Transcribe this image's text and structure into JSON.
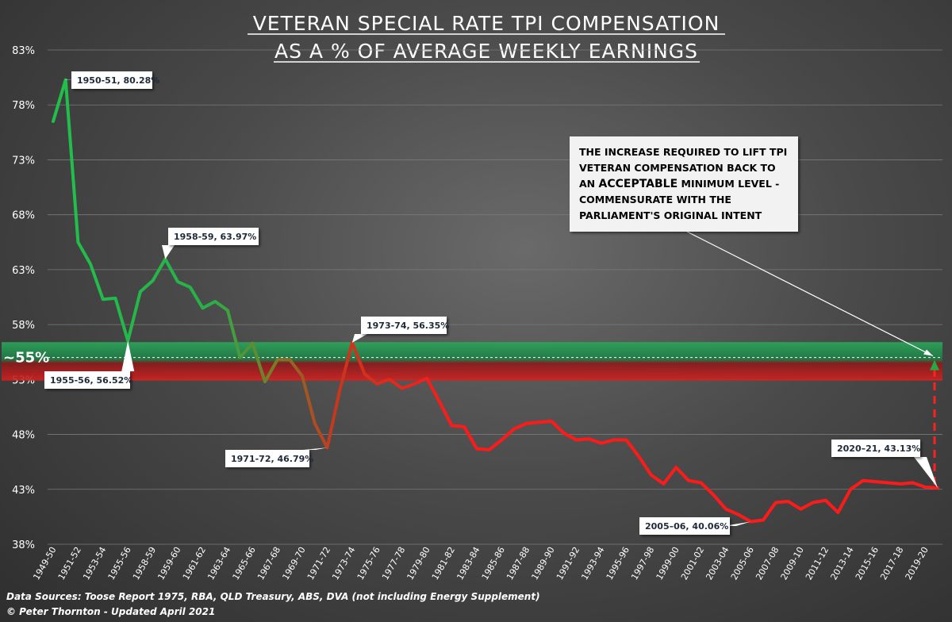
{
  "chart_data": {
    "type": "line",
    "title_lines": [
      "VETERAN SPECIAL RATE TPI COMPENSATION",
      "AS A % OF AVERAGE WEEKLY EARNINGS"
    ],
    "y_ticks": [
      "38%",
      "43%",
      "48%",
      "53%",
      "58%",
      "63%",
      "68%",
      "73%",
      "78%",
      "83%"
    ],
    "ylim": [
      38,
      83
    ],
    "x_tick_labels": [
      "1949-50",
      "1951-52",
      "1953-54",
      "1955-56",
      "1958-59",
      "1959-60",
      "1961-62",
      "1963-64",
      "1965-66",
      "1967-68",
      "1969-70",
      "1971-72",
      "1973-74",
      "1975-76",
      "1977-78",
      "1979-80",
      "1981-82",
      "1983-84",
      "1985-86",
      "1987-88",
      "1989-90",
      "1991-92",
      "1993-94",
      "1995-96",
      "1997-98",
      "1999-00",
      "2001-02",
      "2003-04",
      "2005-06",
      "2007-08",
      "2009-10",
      "2011-12",
      "2013-14",
      "2015-16",
      "2017-18",
      "2019-20"
    ],
    "series": [
      {
        "values": [
          76.5,
          80.28,
          65.5,
          63.5,
          60.3,
          60.4,
          56.52,
          61.0,
          62.0,
          63.97,
          61.9,
          61.4,
          59.5,
          60.1,
          59.3,
          55.0,
          56.3,
          52.8,
          54.8,
          54.8,
          53.3,
          49.0,
          46.79,
          52.0,
          56.35,
          53.5,
          52.6,
          53.0,
          52.2,
          52.6,
          53.1,
          51.0,
          48.8,
          48.7,
          46.7,
          46.6,
          47.5,
          48.5,
          49.0,
          49.1,
          49.2,
          48.1,
          47.5,
          47.6,
          47.2,
          47.5,
          47.5,
          46.0,
          44.3,
          43.5,
          45.0,
          43.8,
          43.6,
          42.5,
          41.2,
          40.7,
          40.06,
          40.2,
          41.8,
          41.9,
          41.2,
          41.8,
          42.0,
          40.9,
          43.0,
          43.8,
          43.7,
          43.6,
          43.5,
          43.6,
          43.2,
          43.13
        ]
      }
    ],
    "band": {
      "center_label": "~55%",
      "center": 55
    },
    "annotations": [
      {
        "text": "1950-51, 80.28%"
      },
      {
        "text": "1958-59, 63.97%"
      },
      {
        "text": "1955-56, 56.52%"
      },
      {
        "text": "1973-74, 56.35%"
      },
      {
        "text": "1971-72, 46.79%"
      },
      {
        "text": "2005–06, 40.06%"
      },
      {
        "text": "2020–21, 43.13%"
      }
    ],
    "note_box": {
      "line1": "THE INCREASE REQUIRED TO LIFT TPI",
      "line2": "VETERAN COMPENSATION BACK TO",
      "line3_pre": "AN ",
      "line3_bold": "ACCEPTABLE",
      "line3_post": " MINIMUM LEVEL -",
      "line4": "COMMENSURATE WITH THE",
      "line5": "PARLIAMENT'S ORIGINAL INTENT"
    },
    "sources": {
      "line1": "Data Sources: Toose Report 1975, RBA, QLD Treasury, ABS, DVA (not including Energy  Supplement)",
      "line2": "© Peter Thornton - Updated April 2021"
    }
  }
}
